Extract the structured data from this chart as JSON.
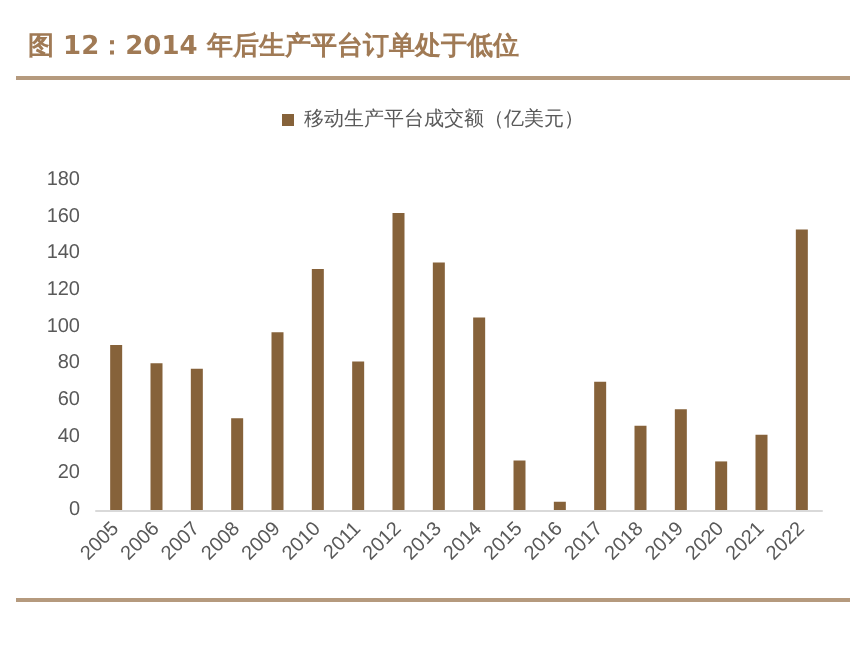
{
  "chart_data": {
    "type": "bar",
    "title": "图 12：2014 年后生产平台订单处于低位",
    "categories": [
      "2005",
      "2006",
      "2007",
      "2008",
      "2009",
      "2010",
      "2011",
      "2012",
      "2013",
      "2014",
      "2015",
      "2016",
      "2017",
      "2018",
      "2019",
      "2020",
      "2021",
      "2022"
    ],
    "series": [
      {
        "name": "移动生产平台成交额（亿美元）",
        "color": "#86623a",
        "values": [
          90,
          80,
          77,
          50,
          97,
          131.5,
          81,
          162,
          135,
          105,
          27,
          4.5,
          70,
          46,
          55,
          26.5,
          41,
          153
        ]
      }
    ],
    "ylim": [
      0,
      180
    ],
    "yticks": [
      0,
      20,
      40,
      60,
      80,
      100,
      120,
      140,
      160,
      180
    ],
    "grid": false,
    "legend": "top"
  }
}
